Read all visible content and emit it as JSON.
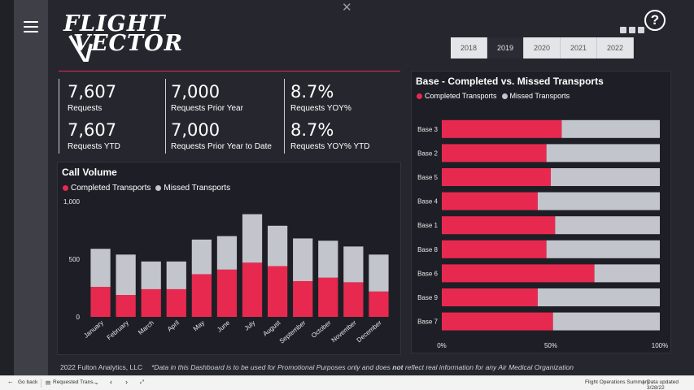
{
  "window": {
    "close_glyph": "✕"
  },
  "brand": {
    "line1": "FLIGHT",
    "line2": "VECTOR"
  },
  "help": {
    "label": "?"
  },
  "years": [
    {
      "label": "2018",
      "selected": false
    },
    {
      "label": "2019",
      "selected": true
    },
    {
      "label": "2020",
      "selected": false
    },
    {
      "label": "2021",
      "selected": false
    },
    {
      "label": "2022",
      "selected": false
    }
  ],
  "kpis": [
    {
      "value": "7,607",
      "label": "Requests"
    },
    {
      "value": "7,000",
      "label": "Requests Prior Year"
    },
    {
      "value": "8.7%",
      "label": "Requests YOY%"
    },
    {
      "value": "7,607",
      "label": "Requests YTD"
    },
    {
      "value": "7,000",
      "label": "Requests Prior Year to Date"
    },
    {
      "value": "8.7%",
      "label": "Requests YOY% YTD"
    }
  ],
  "colors": {
    "completed": "#e8294f",
    "missed": "#c3c5cc",
    "accent": "#e8294f"
  },
  "call_volume": {
    "title": "Call Volume",
    "legend": [
      "Completed Transports",
      "Missed Transports"
    ],
    "chart_data": {
      "type": "bar",
      "stacked": true,
      "categories": [
        "January",
        "February",
        "March",
        "April",
        "May",
        "June",
        "July",
        "August",
        "September",
        "October",
        "November",
        "December"
      ],
      "series": [
        {
          "name": "Completed Transports",
          "values": [
            260,
            190,
            240,
            240,
            370,
            410,
            470,
            440,
            310,
            340,
            300,
            220
          ]
        },
        {
          "name": "Missed Transports",
          "values": [
            330,
            350,
            240,
            240,
            300,
            290,
            420,
            350,
            370,
            320,
            310,
            320
          ]
        }
      ],
      "yticks": [
        "0",
        "500",
        "1,000"
      ],
      "ylim": [
        0,
        1000
      ]
    }
  },
  "base_chart": {
    "title": "Base - Completed vs. Missed Transports",
    "legend": [
      "Completed Transports",
      "Missed Transports"
    ],
    "chart_data": {
      "type": "bar",
      "orientation": "horizontal",
      "stacked_percent": true,
      "categories": [
        "Base 3",
        "Base 2",
        "Base 5",
        "Base 4",
        "Base 1",
        "Base 8",
        "Base 6",
        "Base 9",
        "Base 7"
      ],
      "series": [
        {
          "name": "Completed Transports",
          "values": [
            55,
            48,
            50,
            44,
            52,
            48,
            70,
            44,
            51
          ]
        },
        {
          "name": "Missed Transports",
          "values": [
            45,
            52,
            50,
            56,
            48,
            52,
            30,
            56,
            49
          ]
        }
      ],
      "xticks": [
        "0%",
        "50%",
        "100%"
      ],
      "xlim": [
        0,
        100
      ]
    }
  },
  "footer": {
    "copyright": "2022 Fulton Analytics, LLC",
    "note_pre": "*Data in this Dashboard is to be used for Promotional Purposes only and does ",
    "note_bold": "not",
    "note_post": " reflect real information for any Air Medical Organization"
  },
  "statusbar": {
    "back": "Go back",
    "page": "Requested Trans...",
    "report": "Flight Operations Summary",
    "separator": "|",
    "updated": "Data updated 3/28/22"
  }
}
